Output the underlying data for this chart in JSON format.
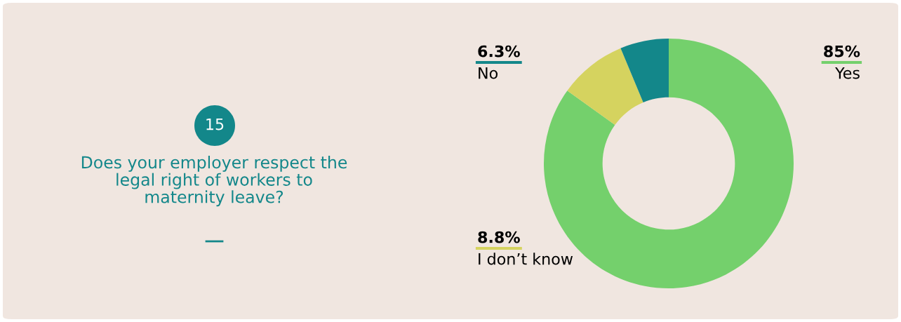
{
  "chart_data": {
    "type": "donut",
    "title": "Does your employer respect the legal right of workers to maternity leave?",
    "annotations": [
      "15"
    ],
    "categories": [
      "Yes",
      "I don’t know",
      "No"
    ],
    "values": [
      85,
      8.8,
      6.3
    ],
    "value_labels": [
      "85%",
      "8.8%",
      "6.3%"
    ],
    "colors": [
      "#74d06c",
      "#d5d35f",
      "#13878a"
    ],
    "legend": "left"
  }
}
